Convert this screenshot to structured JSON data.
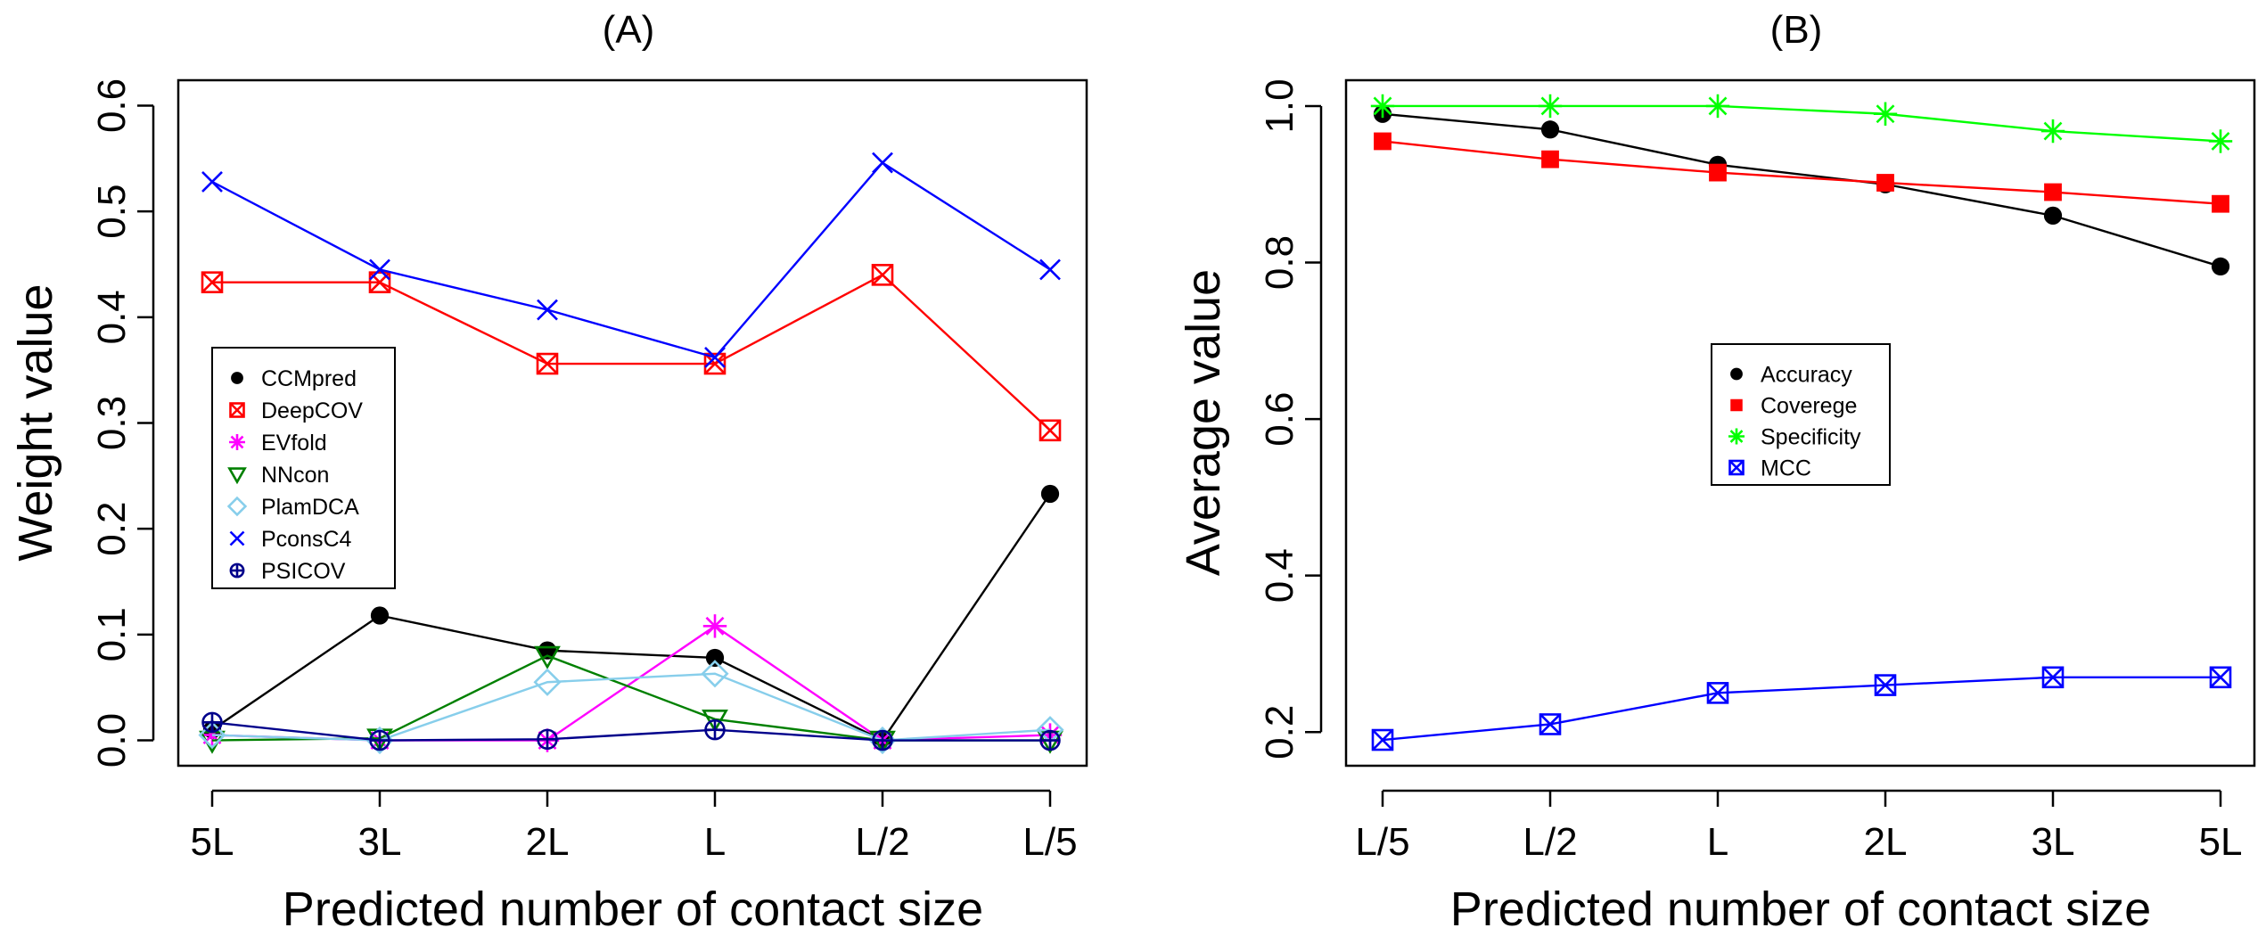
{
  "chart_data": [
    {
      "type": "line",
      "title": "(A)",
      "xlabel": "Predicted number of contact size",
      "ylabel": "Weight value",
      "categories": [
        "5L",
        "3L",
        "2L",
        "L",
        "L/2",
        "L/5"
      ],
      "yticks": [
        "0.0",
        "0.1",
        "0.2",
        "0.3",
        "0.4",
        "0.5",
        "0.6"
      ],
      "ylim": [
        -0.024,
        0.624
      ],
      "legend_position": "left-middle",
      "series": [
        {
          "name": "CCMpred",
          "color": "#000000",
          "marker": "circle-filled",
          "values": [
            0.01,
            0.118,
            0.085,
            0.078,
            0.0,
            0.233
          ]
        },
        {
          "name": "DeepCOV",
          "color": "#ff0000",
          "marker": "square-x",
          "values": [
            0.433,
            0.433,
            0.356,
            0.356,
            0.44,
            0.293
          ]
        },
        {
          "name": "EVfold",
          "color": "#ff00ff",
          "marker": "asterisk",
          "values": [
            0.005,
            0.0,
            0.0,
            0.108,
            0.0,
            0.005
          ]
        },
        {
          "name": "NNcon",
          "color": "#008000",
          "marker": "triangle-down",
          "values": [
            0.0,
            0.002,
            0.08,
            0.02,
            0.0,
            0.0
          ]
        },
        {
          "name": "PlamDCA",
          "color": "#87ceeb",
          "marker": "diamond",
          "values": [
            0.005,
            0.0,
            0.055,
            0.063,
            0.0,
            0.01
          ]
        },
        {
          "name": "PconsC4",
          "color": "#0000ff",
          "marker": "x",
          "values": [
            0.528,
            0.445,
            0.407,
            0.362,
            0.546,
            0.445
          ]
        },
        {
          "name": "PSICOV",
          "color": "#00008b",
          "marker": "circle-plus",
          "values": [
            0.017,
            0.0,
            0.001,
            0.01,
            0.0,
            0.0
          ]
        }
      ]
    },
    {
      "type": "line",
      "title": "(B)",
      "xlabel": "Predicted number of contact size",
      "ylabel": "Average value",
      "categories": [
        "L/5",
        "L/2",
        "L",
        "2L",
        "3L",
        "5L"
      ],
      "yticks": [
        "0.2",
        "0.4",
        "0.6",
        "0.8",
        "1.0"
      ],
      "ylim": [
        0.157,
        1.033
      ],
      "legend_position": "center",
      "series": [
        {
          "name": "Accuracy",
          "color": "#000000",
          "marker": "circle-filled",
          "values": [
            0.99,
            0.97,
            0.925,
            0.9,
            0.86,
            0.795
          ]
        },
        {
          "name": "Coverege",
          "color": "#ff0000",
          "marker": "square-filled",
          "values": [
            0.955,
            0.932,
            0.915,
            0.902,
            0.89,
            0.875
          ]
        },
        {
          "name": "Specificity",
          "color": "#00ff00",
          "marker": "asterisk",
          "values": [
            1.0,
            1.0,
            1.0,
            0.99,
            0.968,
            0.955
          ]
        },
        {
          "name": "MCC",
          "color": "#0000ff",
          "marker": "square-x",
          "values": [
            0.19,
            0.21,
            0.25,
            0.26,
            0.27,
            0.27
          ]
        }
      ]
    }
  ]
}
